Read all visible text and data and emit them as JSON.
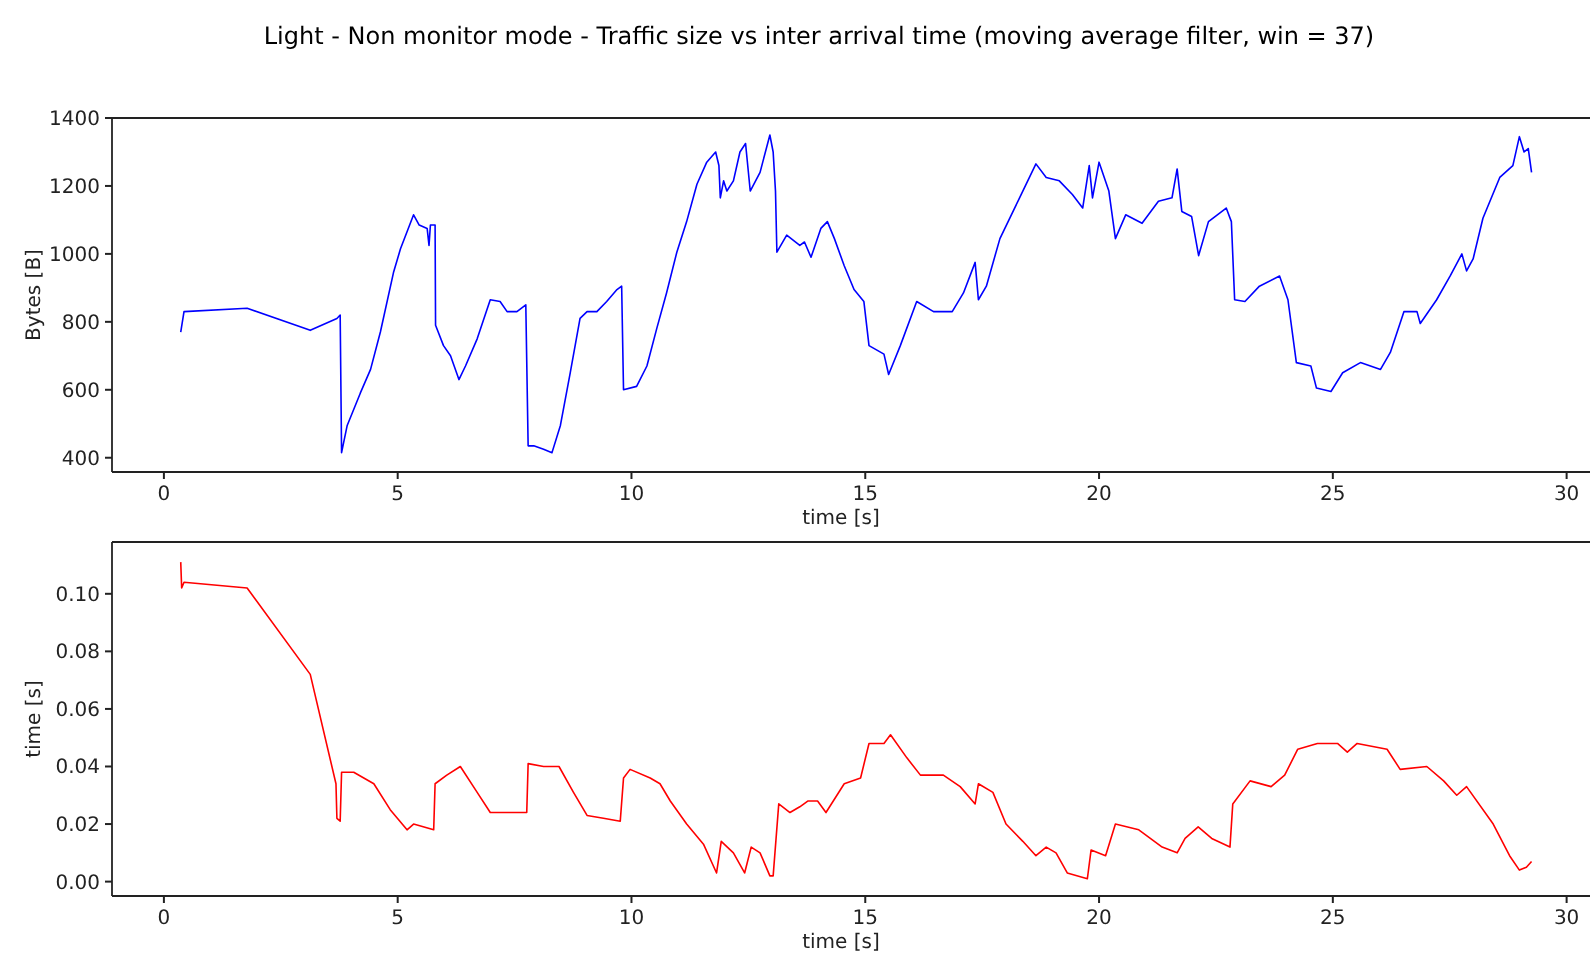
{
  "chart_data": [
    {
      "type": "line",
      "title": "Light - Non monitor mode - Traffic size vs inter arrival time (moving average filter, win = 37)",
      "xlabel": "time [s]",
      "ylabel": "Bytes [B]",
      "xlim": [
        -1.11,
        30.5
      ],
      "ylim": [
        358,
        1400
      ],
      "xticks": [
        0,
        5,
        10,
        15,
        20,
        25,
        30
      ],
      "yticks": [
        400,
        600,
        800,
        1000,
        1200,
        1400
      ],
      "grid": false,
      "line_style": "solid",
      "marker": "none",
      "series": [
        {
          "color": "#0000ff",
          "x": [
            0.36,
            0.43,
            1.78,
            3.13,
            3.7,
            3.77,
            3.8,
            3.92,
            4.2,
            4.42,
            4.63,
            4.91,
            5.06,
            5.34,
            5.46,
            5.63,
            5.67,
            5.7,
            5.8,
            5.81,
            5.98,
            6.13,
            6.31,
            6.45,
            6.7,
            6.98,
            7.19,
            7.34,
            7.55,
            7.74,
            7.79,
            7.91,
            8.12,
            8.3,
            8.48,
            8.69,
            8.9,
            9.05,
            9.26,
            9.47,
            9.69,
            9.79,
            9.83,
            10.11,
            10.33,
            10.54,
            10.75,
            10.97,
            11.18,
            11.4,
            11.61,
            11.8,
            11.87,
            11.9,
            11.97,
            12.04,
            12.18,
            12.32,
            12.44,
            12.54,
            12.75,
            12.96,
            13.03,
            13.08,
            13.11,
            13.32,
            13.6,
            13.7,
            13.84,
            14.05,
            14.19,
            14.34,
            14.55,
            14.76,
            14.97,
            15.08,
            15.4,
            15.5,
            15.75,
            16.1,
            16.46,
            16.86,
            17.1,
            17.35,
            17.42,
            17.59,
            17.88,
            18.3,
            18.65,
            18.87,
            19.15,
            19.43,
            19.65,
            19.79,
            19.86,
            20.0,
            20.21,
            20.35,
            20.57,
            20.92,
            21.27,
            21.56,
            21.67,
            21.77,
            21.98,
            22.13,
            22.34,
            22.72,
            22.83,
            22.9,
            23.12,
            23.43,
            23.86,
            24.04,
            24.22,
            24.53,
            24.65,
            24.96,
            25.21,
            25.59,
            26.02,
            26.23,
            26.52,
            26.8,
            26.87,
            27.22,
            27.51,
            27.76,
            27.86,
            28.0,
            28.21,
            28.57,
            28.85,
            28.99,
            29.09,
            29.18,
            29.25
          ],
          "values": [
            770,
            830,
            840,
            775,
            810,
            820,
            415,
            495,
            590,
            660,
            770,
            945,
            1015,
            1115,
            1085,
            1075,
            1025,
            1085,
            1085,
            790,
            730,
            700,
            630,
            670,
            750,
            865,
            860,
            830,
            830,
            850,
            435,
            435,
            425,
            415,
            495,
            650,
            810,
            830,
            830,
            860,
            895,
            905,
            600,
            610,
            670,
            780,
            885,
            1005,
            1095,
            1205,
            1270,
            1300,
            1260,
            1165,
            1215,
            1185,
            1215,
            1300,
            1325,
            1185,
            1240,
            1350,
            1300,
            1185,
            1005,
            1055,
            1025,
            1035,
            990,
            1075,
            1095,
            1045,
            965,
            895,
            860,
            730,
            705,
            645,
            730,
            860,
            830,
            830,
            885,
            975,
            865,
            905,
            1045,
            1165,
            1265,
            1225,
            1215,
            1175,
            1135,
            1260,
            1165,
            1270,
            1185,
            1045,
            1115,
            1090,
            1155,
            1165,
            1250,
            1125,
            1110,
            995,
            1095,
            1135,
            1095,
            865,
            860,
            905,
            935,
            865,
            680,
            670,
            605,
            595,
            650,
            680,
            660,
            710,
            830,
            830,
            795,
            865,
            935,
            1000,
            950,
            985,
            1105,
            1225,
            1260,
            1345,
            1300,
            1310,
            1240
          ]
        }
      ]
    },
    {
      "type": "line",
      "xlabel": "time [s]",
      "ylabel": "time [s]",
      "xlim": [
        -1.11,
        30.5
      ],
      "ylim": [
        -0.005,
        0.118
      ],
      "xticks": [
        0,
        5,
        10,
        15,
        20,
        25,
        30
      ],
      "yticks": [
        {
          "value": 0,
          "label": "0.00"
        },
        {
          "value": 0.02,
          "label": "0.02"
        },
        {
          "value": 0.04,
          "label": "0.04"
        },
        {
          "value": 0.06,
          "label": "0.06"
        },
        {
          "value": 0.08,
          "label": "0.08"
        },
        {
          "value": 0.1,
          "label": "0.10"
        }
      ],
      "grid": false,
      "line_style": "solid",
      "marker": "none",
      "series": [
        {
          "color": "#ff0000",
          "x": [
            0.36,
            0.38,
            0.43,
            1.78,
            3.13,
            3.68,
            3.7,
            3.77,
            3.8,
            4.06,
            4.49,
            4.84,
            5.2,
            5.34,
            5.77,
            5.8,
            6.05,
            6.34,
            6.7,
            6.98,
            7.48,
            7.76,
            7.79,
            8.12,
            8.45,
            8.76,
            9.05,
            9.4,
            9.76,
            9.83,
            9.97,
            10.4,
            10.61,
            10.83,
            11.18,
            11.54,
            11.82,
            11.92,
            12.18,
            12.42,
            12.56,
            12.75,
            12.96,
            13.03,
            13.15,
            13.39,
            13.6,
            13.77,
            13.98,
            14.16,
            14.55,
            14.9,
            15.08,
            15.4,
            15.54,
            15.89,
            16.18,
            16.67,
            17.03,
            17.35,
            17.42,
            17.73,
            18.01,
            18.37,
            18.65,
            18.87,
            19.08,
            19.32,
            19.75,
            19.83,
            20.14,
            20.35,
            20.85,
            21.35,
            21.67,
            21.84,
            22.12,
            22.41,
            22.8,
            22.86,
            23.23,
            23.68,
            23.97,
            24.25,
            24.67,
            25.1,
            25.31,
            25.52,
            26.16,
            26.44,
            27.01,
            27.37,
            27.65,
            27.86,
            28.43,
            28.78,
            28.99,
            29.14,
            29.25
          ],
          "values": [
            0.111,
            0.102,
            0.104,
            0.102,
            0.072,
            0.034,
            0.022,
            0.021,
            0.038,
            0.038,
            0.034,
            0.025,
            0.018,
            0.02,
            0.018,
            0.034,
            0.037,
            0.04,
            0.031,
            0.024,
            0.024,
            0.024,
            0.041,
            0.04,
            0.04,
            0.031,
            0.023,
            0.022,
            0.021,
            0.036,
            0.039,
            0.036,
            0.034,
            0.028,
            0.02,
            0.013,
            0.003,
            0.014,
            0.01,
            0.003,
            0.012,
            0.01,
            0.002,
            0.002,
            0.027,
            0.024,
            0.026,
            0.028,
            0.028,
            0.024,
            0.034,
            0.036,
            0.048,
            0.048,
            0.051,
            0.043,
            0.037,
            0.037,
            0.033,
            0.027,
            0.034,
            0.031,
            0.02,
            0.014,
            0.009,
            0.012,
            0.01,
            0.003,
            0.001,
            0.011,
            0.009,
            0.02,
            0.018,
            0.012,
            0.01,
            0.015,
            0.019,
            0.015,
            0.012,
            0.027,
            0.035,
            0.033,
            0.037,
            0.046,
            0.048,
            0.048,
            0.045,
            0.048,
            0.046,
            0.039,
            0.04,
            0.035,
            0.03,
            0.033,
            0.02,
            0.009,
            0.004,
            0.005,
            0.007
          ]
        }
      ]
    }
  ]
}
